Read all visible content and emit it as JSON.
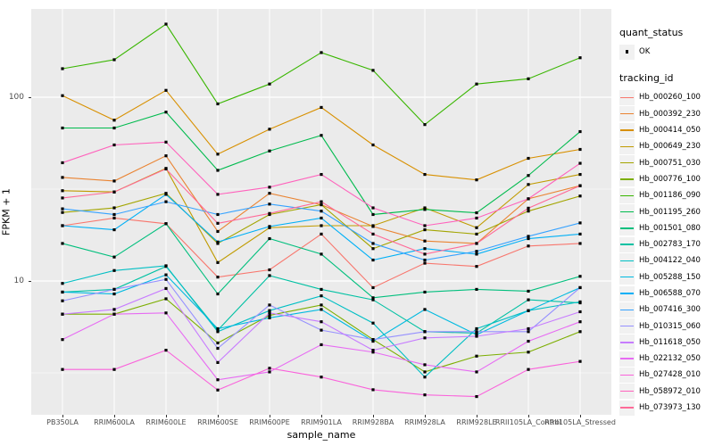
{
  "figure": {
    "panel_bg": "#EBEBEB",
    "gridline_color": "#FFFFFF",
    "tick_color": "#333333",
    "tick_label_color": "#4D4D4D",
    "point_color": "#000000"
  },
  "legend": {
    "quant_status": {
      "title": "quant_status",
      "items": [
        {
          "label": "OK",
          "marker": "black-point"
        }
      ]
    },
    "tracking_id": {
      "title": "tracking_id"
    }
  },
  "chart_data": {
    "type": "line",
    "scale_y": "log10",
    "xlabel": "sample_name",
    "ylabel": "FPKM + 1",
    "y_ticks": [
      100,
      10
    ],
    "ylim": [
      1.9,
      300
    ],
    "grid": "on",
    "legend_position": "right",
    "categories": [
      "PB350LA",
      "RRIM600LA",
      "RRIM600LE",
      "RRIM600SE",
      "RRIM600PE",
      "RRIM901LA",
      "RRIM928BA",
      "RRIM928LA",
      "RRIM928LE",
      "RRII105LA_Control",
      "RRII105LA_Stressed"
    ],
    "series": [
      {
        "name": "Hb_000260_100",
        "color": "#F8766D",
        "values": [
          20,
          22,
          20.5,
          10.5,
          11.5,
          18,
          9.2,
          12.5,
          12,
          15.5,
          16
        ]
      },
      {
        "name": "Hb_000392_230",
        "color": "#EA8331",
        "values": [
          36.6,
          35,
          48,
          18.6,
          30,
          26,
          19.8,
          16.5,
          16,
          28,
          33
        ]
      },
      {
        "name": "Hb_000414_050",
        "color": "#D89000",
        "values": [
          102,
          75,
          109,
          49,
          67,
          88,
          55,
          38,
          35.5,
          46.5,
          52
        ]
      },
      {
        "name": "Hb_000649_230",
        "color": "#C09B00",
        "values": [
          31,
          30.5,
          41,
          12.6,
          19.5,
          20,
          20,
          25,
          19.5,
          33.5,
          38
        ]
      },
      {
        "name": "Hb_000751_030",
        "color": "#A3A500",
        "values": [
          23.6,
          25,
          30,
          16,
          23,
          26,
          15,
          19,
          18,
          24,
          29
        ]
      },
      {
        "name": "Hb_000776_100",
        "color": "#7CAE00",
        "values": [
          6.6,
          6.6,
          8,
          4.6,
          6.5,
          7.4,
          4.8,
          3.2,
          3.9,
          4.1,
          5.3
        ]
      },
      {
        "name": "Hb_001186_090",
        "color": "#39B600",
        "values": [
          143,
          160,
          250,
          92,
          118,
          175,
          140,
          71,
          118,
          126,
          164
        ]
      },
      {
        "name": "Hb_001195_260",
        "color": "#00BB4E",
        "values": [
          68,
          68,
          83,
          40,
          51,
          62,
          23,
          24.5,
          23.5,
          37.5,
          65
        ]
      },
      {
        "name": "Hb_001501_080",
        "color": "#00BF7D",
        "values": [
          16,
          13.5,
          20.5,
          8.5,
          17,
          14,
          8.1,
          8.7,
          9,
          8.8,
          10.6
        ]
      },
      {
        "name": "Hb_002783_170",
        "color": "#00C1A3",
        "values": [
          8.7,
          9,
          12,
          5.4,
          10.7,
          9,
          7.9,
          5.3,
          5.2,
          7.9,
          7.6
        ]
      },
      {
        "name": "Hb_004122_040",
        "color": "#00BFC4",
        "values": [
          9.7,
          11.4,
          12.1,
          5.3,
          6.9,
          8.3,
          5.9,
          3.0,
          5.5,
          6.9,
          7.7
        ]
      },
      {
        "name": "Hb_005288_150",
        "color": "#00BAE0",
        "values": [
          8.7,
          8.5,
          10.8,
          5.5,
          6.3,
          7,
          4.7,
          7,
          5.1,
          6.9,
          9.2
        ]
      },
      {
        "name": "Hb_006588_070",
        "color": "#00B0F6",
        "values": [
          20,
          19,
          29.6,
          16.3,
          19.8,
          22,
          13,
          15,
          14,
          17,
          18
        ]
      },
      {
        "name": "Hb_007416_300",
        "color": "#35A2FF",
        "values": [
          24.7,
          23,
          27,
          23,
          26.2,
          24,
          16,
          13,
          14.5,
          17.5,
          20.7
        ]
      },
      {
        "name": "Hb_010315_060",
        "color": "#9590FF",
        "values": [
          7.8,
          9,
          10.2,
          4.3,
          7.4,
          5.4,
          4.8,
          5.3,
          5.3,
          5.3,
          9.2
        ]
      },
      {
        "name": "Hb_011618_050",
        "color": "#C77CFF",
        "values": [
          6.6,
          7,
          9.1,
          3.6,
          6.7,
          6,
          4.2,
          4.9,
          5,
          5.5,
          6.8
        ]
      },
      {
        "name": "Hb_022132_050",
        "color": "#E76BF3",
        "values": [
          4.8,
          6.6,
          6.7,
          2.9,
          3.2,
          4.5,
          4.1,
          3.5,
          3.2,
          4.7,
          6
        ]
      },
      {
        "name": "Hb_027428_010",
        "color": "#FA62DB",
        "values": [
          3.3,
          3.3,
          4.2,
          2.55,
          3.35,
          3.0,
          2.56,
          2.4,
          2.35,
          3.3,
          3.65
        ]
      },
      {
        "name": "Hb_058972_010",
        "color": "#FF62BC",
        "values": [
          44,
          55,
          57,
          29.6,
          32.4,
          38,
          25,
          20,
          22,
          28,
          43.7
        ]
      },
      {
        "name": "Hb_073973_130",
        "color": "#FF6A98",
        "values": [
          28.3,
          30.5,
          40.7,
          20.6,
          23.3,
          27,
          18,
          14,
          16,
          24.9,
          33
        ]
      }
    ]
  }
}
